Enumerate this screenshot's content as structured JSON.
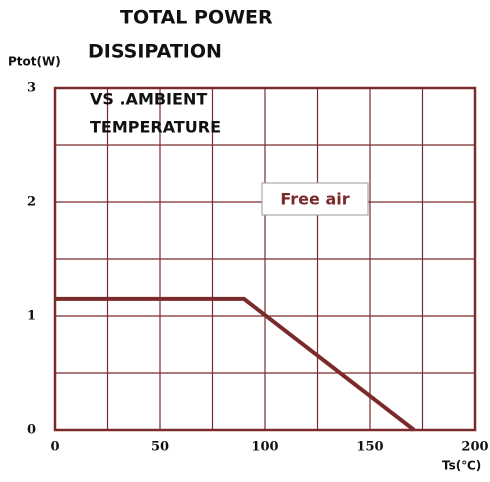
{
  "chart_data": {
    "type": "line",
    "title": [
      "TOTAL POWER",
      "DISSIPATION"
    ],
    "subtitle": [
      "VS .AMBIENT",
      "TEMPERATURE"
    ],
    "y_label": "Ptot(W)",
    "x_label": "Ts(℃)",
    "annotation": "Free air",
    "x": [
      0,
      90,
      171
    ],
    "series": [
      {
        "name": "Free air",
        "color": "#7a2a2a",
        "values": [
          1.15,
          1.15,
          0
        ]
      }
    ],
    "xlim": [
      0,
      200
    ],
    "xticks": [
      0,
      50,
      100,
      150,
      200
    ],
    "ylim": [
      0,
      3
    ],
    "yticks": [
      0,
      1,
      2,
      3
    ],
    "x_gridlines": [
      25,
      50,
      75,
      100,
      125,
      150,
      175
    ],
    "y_gridlines": [
      0.5,
      1,
      1.5,
      2,
      2.5
    ],
    "grid": true
  }
}
